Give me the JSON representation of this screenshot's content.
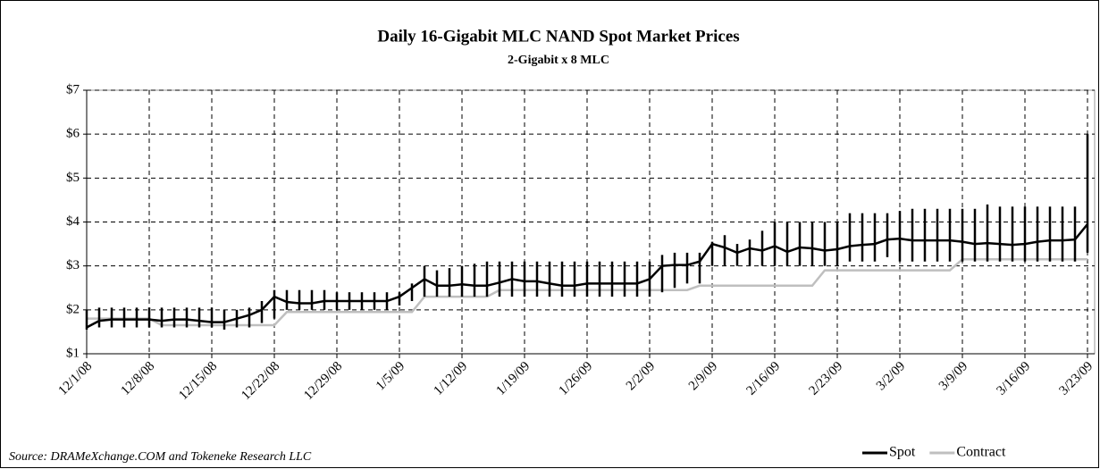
{
  "chart_data": {
    "type": "line",
    "title": "Daily 16-Gigabit MLC NAND Spot Market Prices",
    "subtitle": "2-Gigabit x 8 MLC",
    "source": "Source: DRAMeXchange.COM and Tokeneke Research LLC",
    "categories": [
      "12/1/08",
      null,
      null,
      null,
      null,
      "12/8/08",
      null,
      null,
      null,
      null,
      "12/15/08",
      null,
      null,
      null,
      null,
      "12/22/08",
      null,
      null,
      null,
      null,
      "12/29/08",
      null,
      null,
      null,
      null,
      "1/5/09",
      null,
      null,
      null,
      null,
      "1/12/09",
      null,
      null,
      null,
      null,
      "1/19/09",
      null,
      null,
      null,
      null,
      "1/26/09",
      null,
      null,
      null,
      null,
      "2/2/09",
      null,
      null,
      null,
      null,
      "2/9/09",
      null,
      null,
      null,
      null,
      "2/16/09",
      null,
      null,
      null,
      null,
      "2/23/09",
      null,
      null,
      null,
      null,
      "3/2/09",
      null,
      null,
      null,
      null,
      "3/9/09",
      null,
      null,
      null,
      null,
      "3/16/09",
      null,
      null,
      null,
      null,
      "3/23/09"
    ],
    "series": [
      {
        "name": "Spot",
        "color": "#000000",
        "values": [
          1.6,
          1.75,
          1.78,
          1.78,
          1.78,
          1.78,
          1.75,
          1.78,
          1.78,
          1.75,
          1.72,
          1.72,
          1.8,
          1.88,
          2.0,
          2.3,
          2.18,
          2.15,
          2.15,
          2.2,
          2.2,
          2.2,
          2.2,
          2.2,
          2.2,
          2.3,
          2.5,
          2.7,
          2.55,
          2.55,
          2.58,
          2.55,
          2.55,
          2.62,
          2.7,
          2.65,
          2.65,
          2.6,
          2.55,
          2.55,
          2.6,
          2.6,
          2.6,
          2.6,
          2.6,
          2.7,
          3.0,
          3.02,
          3.02,
          3.1,
          3.5,
          3.42,
          3.3,
          3.4,
          3.35,
          3.45,
          3.32,
          3.42,
          3.4,
          3.35,
          3.38,
          3.45,
          3.48,
          3.5,
          3.6,
          3.62,
          3.58,
          3.58,
          3.58,
          3.58,
          3.55,
          3.5,
          3.52,
          3.5,
          3.48,
          3.5,
          3.55,
          3.58,
          3.58,
          3.6,
          3.95
        ],
        "high": [
          2.0,
          2.05,
          2.05,
          2.05,
          2.05,
          2.05,
          2.05,
          2.05,
          2.05,
          2.05,
          2.05,
          2.0,
          2.0,
          2.05,
          2.2,
          2.45,
          2.45,
          2.45,
          2.45,
          2.45,
          2.4,
          2.4,
          2.4,
          2.4,
          2.4,
          2.4,
          2.6,
          3.0,
          2.9,
          2.95,
          3.0,
          3.05,
          3.1,
          3.1,
          3.1,
          3.1,
          3.1,
          3.1,
          3.1,
          3.1,
          3.1,
          3.1,
          3.1,
          3.1,
          3.1,
          3.1,
          3.25,
          3.3,
          3.3,
          3.3,
          3.55,
          3.7,
          3.5,
          3.6,
          3.8,
          4.0,
          4.0,
          4.0,
          4.0,
          4.0,
          4.0,
          4.2,
          4.2,
          4.2,
          4.2,
          4.25,
          4.3,
          4.3,
          4.3,
          4.3,
          4.3,
          4.3,
          4.4,
          4.35,
          4.35,
          4.35,
          4.35,
          4.35,
          4.35,
          4.35,
          6.0
        ],
        "low": [
          1.55,
          1.6,
          1.6,
          1.6,
          1.6,
          1.6,
          1.6,
          1.6,
          1.6,
          1.6,
          1.6,
          1.55,
          1.6,
          1.6,
          1.7,
          1.8,
          2.0,
          2.0,
          2.0,
          2.0,
          2.0,
          2.0,
          2.0,
          2.0,
          2.0,
          2.1,
          2.2,
          2.3,
          2.3,
          2.3,
          2.3,
          2.3,
          2.3,
          2.3,
          2.3,
          2.3,
          2.3,
          2.3,
          2.3,
          2.3,
          2.3,
          2.3,
          2.3,
          2.3,
          2.3,
          2.3,
          2.4,
          2.5,
          2.6,
          2.6,
          3.0,
          3.0,
          3.0,
          3.0,
          3.0,
          3.0,
          3.0,
          3.0,
          3.0,
          3.0,
          3.0,
          3.1,
          3.1,
          3.1,
          3.2,
          3.1,
          3.1,
          3.1,
          3.1,
          3.1,
          3.1,
          3.1,
          3.1,
          3.1,
          3.1,
          3.1,
          3.1,
          3.1,
          3.1,
          3.1,
          3.3
        ]
      },
      {
        "name": "Contract",
        "color": "#bfbfbf",
        "values": [
          1.8,
          1.8,
          1.8,
          1.8,
          1.8,
          1.8,
          1.65,
          1.65,
          1.65,
          1.65,
          1.65,
          1.65,
          1.65,
          1.65,
          1.65,
          1.65,
          1.95,
          1.95,
          1.95,
          1.95,
          1.95,
          1.95,
          1.95,
          1.95,
          1.95,
          1.95,
          1.95,
          2.3,
          2.3,
          2.3,
          2.3,
          2.3,
          2.3,
          2.45,
          2.45,
          2.45,
          2.45,
          2.45,
          2.45,
          2.45,
          2.45,
          2.45,
          2.45,
          2.45,
          2.45,
          2.45,
          2.45,
          2.45,
          2.45,
          2.55,
          2.55,
          2.55,
          2.55,
          2.55,
          2.55,
          2.55,
          2.55,
          2.55,
          2.55,
          2.9,
          2.9,
          2.9,
          2.9,
          2.9,
          2.9,
          2.9,
          2.9,
          2.9,
          2.9,
          2.9,
          3.15,
          3.15,
          3.15,
          3.15,
          3.15,
          3.15,
          3.15,
          3.15,
          3.15,
          3.15,
          3.15
        ]
      }
    ],
    "ylim": [
      1,
      7
    ],
    "yticks": [
      {
        "value": 1,
        "label": "$1"
      },
      {
        "value": 2,
        "label": "$2"
      },
      {
        "value": 3,
        "label": "$3"
      },
      {
        "value": 4,
        "label": "$4"
      },
      {
        "value": 5,
        "label": "$5"
      },
      {
        "value": 6,
        "label": "$6"
      },
      {
        "value": 7,
        "label": "$7"
      }
    ],
    "grid": true,
    "legend": "bottom-right"
  }
}
